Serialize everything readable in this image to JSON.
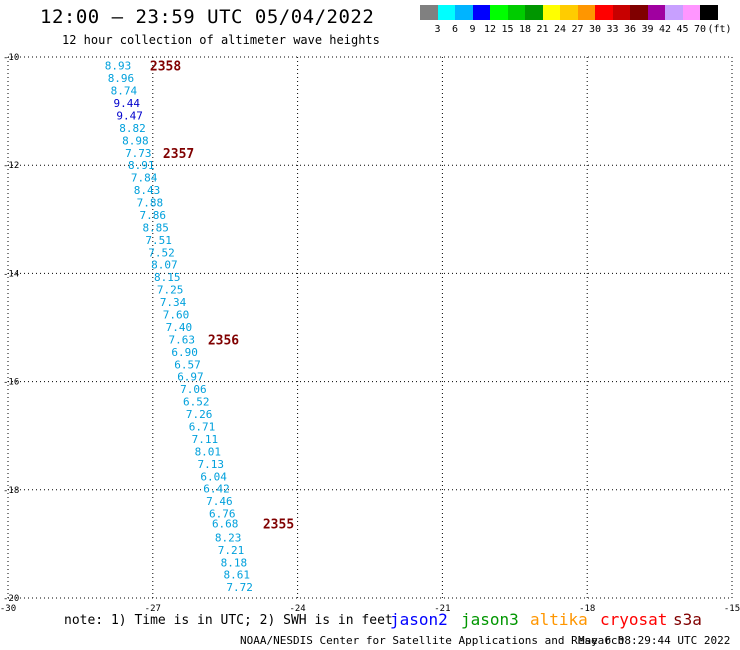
{
  "title": "12:00 – 23:59 UTC 05/04/2022",
  "subtitle": "12 hour collection of altimeter wave heights",
  "colorbar": {
    "unit": "(ft)",
    "swatches": [
      "#808080",
      "#00ffff",
      "#00b4ff",
      "#0000ff",
      "#00ff00",
      "#00cc00",
      "#009600",
      "#ffff00",
      "#ffcc00",
      "#ff9600",
      "#ff0000",
      "#c80000",
      "#800000",
      "#a000a0",
      "#c8a0ff",
      "#ff96ff",
      "#000000"
    ],
    "labels": [
      "3",
      "6",
      "9",
      "12",
      "15",
      "18",
      "21",
      "24",
      "27",
      "30",
      "33",
      "36",
      "39",
      "42",
      "45",
      "70"
    ]
  },
  "map": {
    "lon_ticks": [
      "-30",
      "-27",
      "-24",
      "-21",
      "-18",
      "-15"
    ],
    "lat_ticks": [
      "-10",
      "-12",
      "-14",
      "-16",
      "-18",
      "-20"
    ],
    "lon_values": [
      -30,
      -27,
      -24,
      -21,
      -18,
      -15
    ],
    "lat_values": [
      -10,
      -12,
      -14,
      -16,
      -18,
      -20
    ],
    "lon_range": [
      -30,
      -15
    ],
    "lat_range": [
      -10,
      -20
    ],
    "grid": true
  },
  "track": {
    "color_dark": "#0000cc",
    "color_light": "#00a0dc",
    "points": [
      {
        "lon": -27.72,
        "lat": -10.16,
        "swh": "8.93"
      },
      {
        "lon": -27.66,
        "lat": -10.39,
        "swh": "8.96"
      },
      {
        "lon": -27.6,
        "lat": -10.62,
        "swh": "8.74"
      },
      {
        "lon": -27.54,
        "lat": -10.85,
        "swh": "9.44",
        "dark": true
      },
      {
        "lon": -27.48,
        "lat": -11.08,
        "swh": "9.47",
        "dark": true
      },
      {
        "lon": -27.42,
        "lat": -11.31,
        "swh": "8.82"
      },
      {
        "lon": -27.36,
        "lat": -11.54,
        "swh": "8.98"
      },
      {
        "lon": -27.3,
        "lat": -11.77,
        "swh": "7.73"
      },
      {
        "lon": -27.24,
        "lat": -12.0,
        "swh": "8.91"
      },
      {
        "lon": -27.18,
        "lat": -12.23,
        "swh": "7.84"
      },
      {
        "lon": -27.12,
        "lat": -12.46,
        "swh": "8.43"
      },
      {
        "lon": -27.06,
        "lat": -12.69,
        "swh": "7.88"
      },
      {
        "lon": -27.0,
        "lat": -12.92,
        "swh": "7.86"
      },
      {
        "lon": -26.94,
        "lat": -13.15,
        "swh": "8.85"
      },
      {
        "lon": -26.88,
        "lat": -13.38,
        "swh": "7.51"
      },
      {
        "lon": -26.82,
        "lat": -13.61,
        "swh": "7.52"
      },
      {
        "lon": -26.76,
        "lat": -13.84,
        "swh": "8.07"
      },
      {
        "lon": -26.7,
        "lat": -14.07,
        "swh": "8.15"
      },
      {
        "lon": -26.64,
        "lat": -14.3,
        "swh": "7.25"
      },
      {
        "lon": -26.58,
        "lat": -14.53,
        "swh": "7.34"
      },
      {
        "lon": -26.52,
        "lat": -14.76,
        "swh": "7.60"
      },
      {
        "lon": -26.46,
        "lat": -14.99,
        "swh": "7.40"
      },
      {
        "lon": -26.4,
        "lat": -15.22,
        "swh": "7.63"
      },
      {
        "lon": -26.34,
        "lat": -15.45,
        "swh": "6.90"
      },
      {
        "lon": -26.28,
        "lat": -15.68,
        "swh": "6.57"
      },
      {
        "lon": -26.22,
        "lat": -15.91,
        "swh": "6.97"
      },
      {
        "lon": -26.16,
        "lat": -16.14,
        "swh": "7.06"
      },
      {
        "lon": -26.1,
        "lat": -16.37,
        "swh": "6.52"
      },
      {
        "lon": -26.04,
        "lat": -16.6,
        "swh": "7.26"
      },
      {
        "lon": -25.98,
        "lat": -16.83,
        "swh": "6.71"
      },
      {
        "lon": -25.92,
        "lat": -17.06,
        "swh": "7.11"
      },
      {
        "lon": -25.86,
        "lat": -17.29,
        "swh": "8.01"
      },
      {
        "lon": -25.8,
        "lat": -17.52,
        "swh": "7.13"
      },
      {
        "lon": -25.74,
        "lat": -17.75,
        "swh": "6.04"
      },
      {
        "lon": -25.68,
        "lat": -17.98,
        "swh": "6.42"
      },
      {
        "lon": -25.62,
        "lat": -18.21,
        "swh": "7.46"
      },
      {
        "lon": -25.56,
        "lat": -18.44,
        "swh": "6.76"
      },
      {
        "lon": -25.5,
        "lat": -18.62,
        "swh": "6.68"
      },
      {
        "lon": -25.44,
        "lat": -18.88,
        "swh": "8.23"
      },
      {
        "lon": -25.38,
        "lat": -19.11,
        "swh": "7.21"
      },
      {
        "lon": -25.32,
        "lat": -19.34,
        "swh": "8.18"
      },
      {
        "lon": -25.26,
        "lat": -19.57,
        "swh": "8.61"
      },
      {
        "lon": -25.2,
        "lat": -19.8,
        "swh": "7.72"
      }
    ]
  },
  "time_labels": {
    "color": "#800000",
    "items": [
      {
        "text": "2358",
        "lon": -27.06,
        "lat": -10.16
      },
      {
        "text": "2357",
        "lon": -26.79,
        "lat": -11.77
      },
      {
        "text": "2356",
        "lon": -25.86,
        "lat": -15.22
      },
      {
        "text": "2355",
        "lon": -24.72,
        "lat": -18.62
      }
    ]
  },
  "note": "note: 1) Time is in UTC; 2) SWH is in feet",
  "satellites": [
    {
      "name": "jason2",
      "color": "#0000ff"
    },
    {
      "name": "jason3",
      "color": "#009600"
    },
    {
      "name": "altika",
      "color": "#ff9600"
    },
    {
      "name": "cryosat",
      "color": "#ff0000"
    },
    {
      "name": "s3a",
      "color": "#800000"
    }
  ],
  "credit": "NOAA/NESDIS Center for Satellite Applications and Research",
  "generated": "May  6 08:29:44 UTC 2022"
}
